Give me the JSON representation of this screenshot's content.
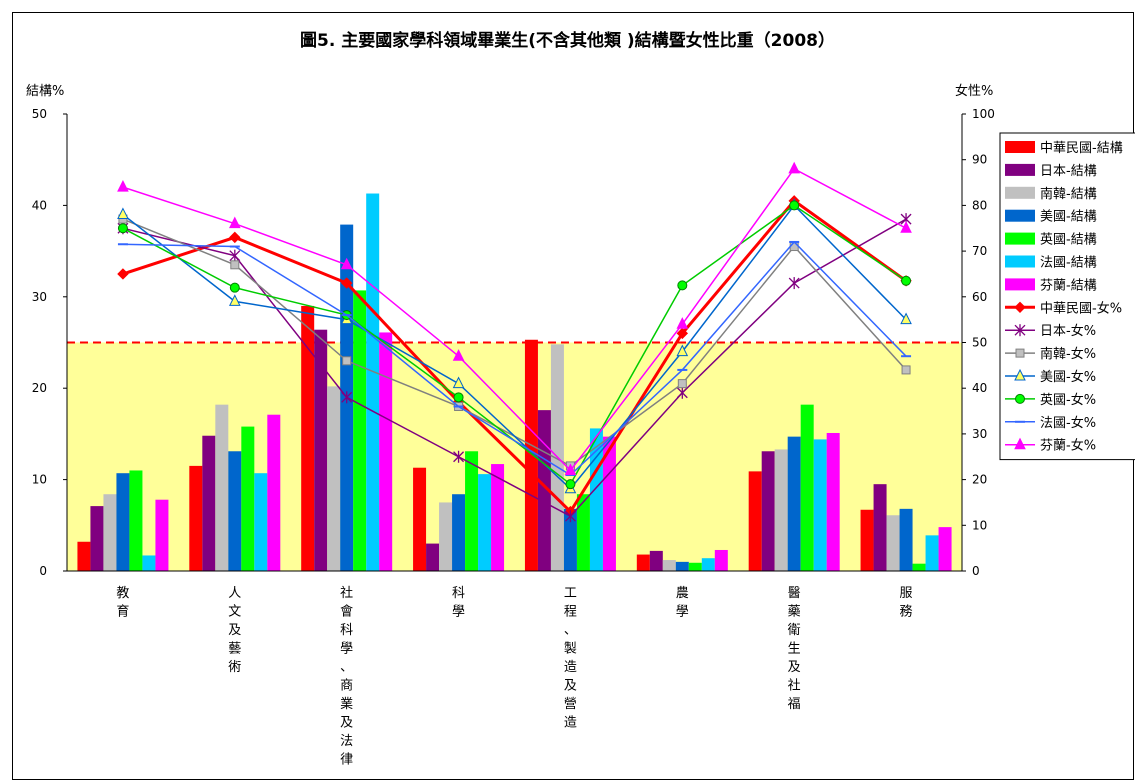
{
  "chart_data": {
    "type": "bar",
    "title": "圖5. 主要國家學科領域畢業生(不含其他類 )結構暨女性比重（2008）",
    "ylabel": "結構%",
    "y2label": "女性%",
    "ylim": [
      0,
      50
    ],
    "y2lim": [
      0,
      100
    ],
    "yticks": [
      "0",
      "10",
      "20",
      "30",
      "40",
      "50"
    ],
    "y2ticks": [
      "0",
      "10",
      "20",
      "30",
      "40",
      "50",
      "60",
      "70",
      "80",
      "90",
      "100"
    ],
    "reference_line_y2": 50,
    "reference_fill_color": "#ffff99",
    "categories": [
      "教育",
      "人文及藝術",
      "社會科學、商業及法律",
      "科學",
      "工程、製造及營造",
      "農學",
      "醫藥衛生及社福",
      "服務"
    ],
    "bar_series": [
      {
        "name": "中華民國-結構",
        "color": "#ff0000",
        "values": [
          3.2,
          11.5,
          29.0,
          11.3,
          25.3,
          1.8,
          10.9,
          6.7
        ]
      },
      {
        "name": "日本-結構",
        "color": "#800080",
        "values": [
          7.1,
          14.8,
          26.4,
          3.0,
          17.6,
          2.2,
          13.1,
          9.5
        ]
      },
      {
        "name": "南韓-結構",
        "color": "#c0c0c0",
        "values": [
          8.4,
          18.2,
          20.2,
          7.5,
          24.8,
          1.2,
          13.3,
          6.1
        ]
      },
      {
        "name": "美國-結構",
        "color": "#0066cc",
        "values": [
          10.7,
          13.1,
          37.9,
          8.4,
          6.8,
          1.0,
          14.7,
          6.8
        ]
      },
      {
        "name": "英國-結構",
        "color": "#00ff00",
        "values": [
          11.0,
          15.8,
          30.7,
          13.1,
          8.4,
          0.9,
          18.2,
          0.8
        ]
      },
      {
        "name": "法國-結構",
        "color": "#00ccff",
        "values": [
          1.7,
          10.7,
          41.3,
          10.6,
          15.6,
          1.4,
          14.4,
          3.9
        ]
      },
      {
        "name": "芬蘭-結構",
        "color": "#ff00ff",
        "values": [
          7.8,
          17.1,
          26.1,
          11.7,
          14.7,
          2.3,
          15.1,
          4.8
        ]
      }
    ],
    "line_series": [
      {
        "name": "中華民國-女%",
        "color": "#ff0000",
        "marker": "diamond",
        "width": 3,
        "values": [
          65,
          73,
          63,
          37,
          13,
          52,
          81,
          63.5
        ]
      },
      {
        "name": "日本-女%",
        "color": "#800080",
        "marker": "star",
        "width": 1.5,
        "values": [
          75,
          69,
          38,
          25,
          12,
          39,
          63,
          77
        ]
      },
      {
        "name": "南韓-女%",
        "color": "#808080",
        "marker": "square",
        "width": 1.5,
        "values": [
          77,
          67,
          46,
          36,
          23,
          41,
          71,
          44
        ]
      },
      {
        "name": "美國-女%",
        "color": "#0066cc",
        "marker": "triangle",
        "width": 1.5,
        "values": [
          78,
          59,
          55,
          41,
          18,
          48,
          80,
          55
        ]
      },
      {
        "name": "英國-女%",
        "color": "#00cc00",
        "marker": "circle",
        "width": 1.5,
        "values": [
          75,
          62,
          56,
          38,
          19,
          62.5,
          80,
          63.5
        ]
      },
      {
        "name": "法國-女%",
        "color": "#3366ff",
        "marker": "dash",
        "width": 1.5,
        "values": [
          71.5,
          71,
          56,
          36,
          21,
          44,
          72,
          47
        ]
      },
      {
        "name": "芬蘭-女%",
        "color": "#ff00ff",
        "marker": "triangle",
        "width": 1.5,
        "values": [
          84,
          76,
          67,
          47,
          22,
          54,
          88,
          75
        ]
      }
    ],
    "legend_position": "right"
  }
}
